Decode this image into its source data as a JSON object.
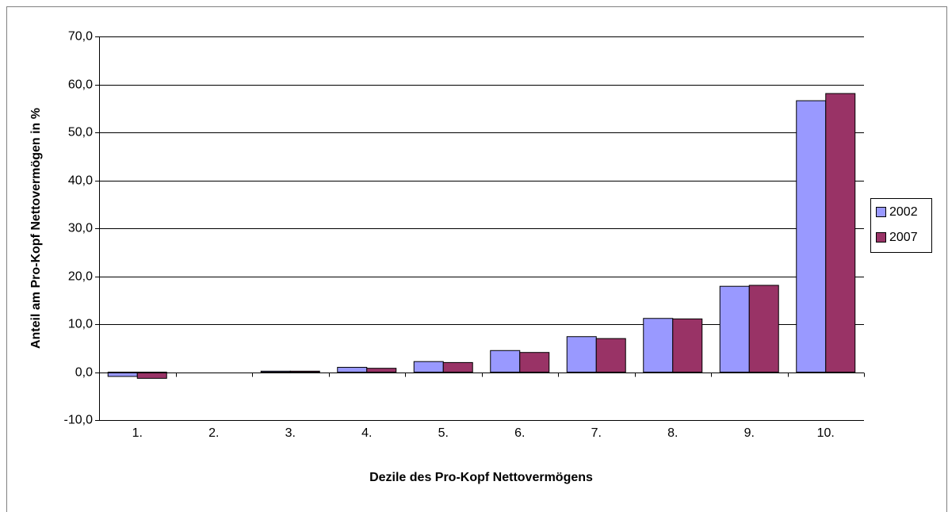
{
  "chart_data": {
    "type": "bar",
    "x_label": "Dezile des Pro-Kopf Nettovermögens",
    "y_label": "Anteil am Pro-Kopf Nettovermögen in %",
    "categories": [
      "1.",
      "2.",
      "3.",
      "4.",
      "5.",
      "6.",
      "7.",
      "8.",
      "9.",
      "10."
    ],
    "series": [
      {
        "name": "2002",
        "color": "#9999ff",
        "values": [
          -0.9,
          0,
          0.2,
          1.0,
          2.2,
          4.5,
          7.4,
          11.2,
          17.9,
          56.6
        ]
      },
      {
        "name": "2007",
        "color": "#993366",
        "values": [
          -1.3,
          0,
          0.2,
          0.8,
          2.0,
          4.1,
          7.0,
          11.1,
          18.1,
          58.1
        ]
      }
    ],
    "ylim": [
      -10,
      70
    ],
    "yticks": [
      {
        "value": -10,
        "label": "-10,0"
      },
      {
        "value": 0,
        "label": "0,0"
      },
      {
        "value": 10,
        "label": "10,0"
      },
      {
        "value": 20,
        "label": "20,0"
      },
      {
        "value": 30,
        "label": "30,0"
      },
      {
        "value": 40,
        "label": "40,0"
      },
      {
        "value": 50,
        "label": "50,0"
      },
      {
        "value": 60,
        "label": "60,0"
      },
      {
        "value": 70,
        "label": "70,0"
      }
    ],
    "grid": true,
    "legend": "right"
  }
}
